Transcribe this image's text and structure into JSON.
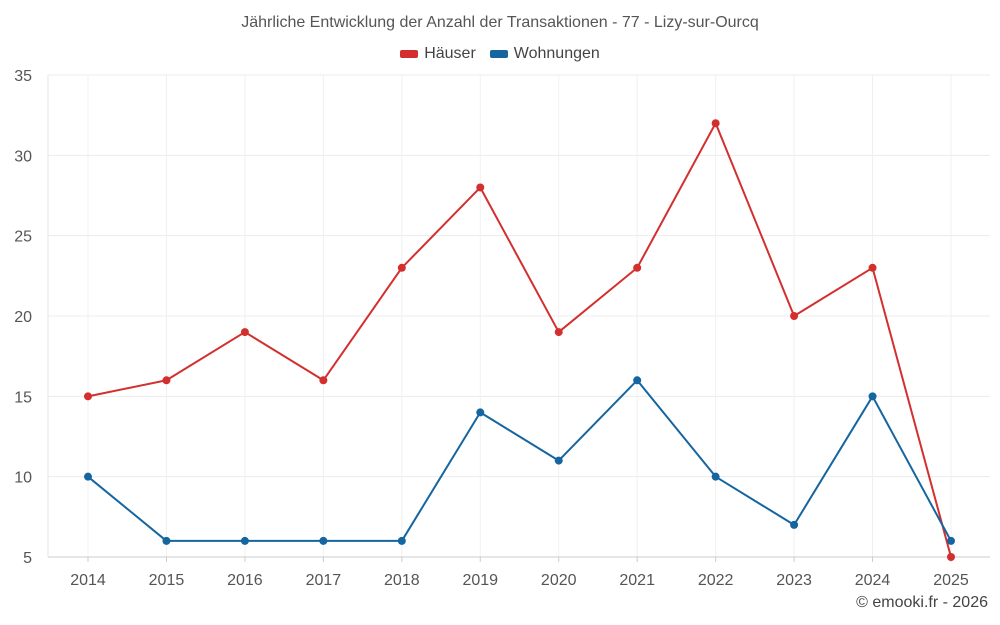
{
  "chart_data": {
    "type": "line",
    "title": "Jährliche Entwicklung der Anzahl der Transaktionen - 77 - Lizy-sur-Ourcq",
    "categories": [
      "2014",
      "2015",
      "2016",
      "2017",
      "2018",
      "2019",
      "2020",
      "2021",
      "2022",
      "2023",
      "2024",
      "2025"
    ],
    "series": [
      {
        "name": "Häuser",
        "color": "#d32f2f",
        "values": [
          15,
          16,
          19,
          16,
          23,
          28,
          19,
          23,
          32,
          20,
          23,
          5
        ]
      },
      {
        "name": "Wohnungen",
        "color": "#1565a0",
        "values": [
          10,
          6,
          6,
          6,
          6,
          14,
          11,
          16,
          10,
          7,
          15,
          6
        ]
      }
    ],
    "yticks": [
      5,
      10,
      15,
      20,
      25,
      30,
      35
    ],
    "ylim": [
      5,
      35
    ],
    "xlabel": "",
    "ylabel": "",
    "legend_position": "top-center",
    "grid": true
  },
  "footer": {
    "credit": "© emooki.fr - 2026"
  }
}
